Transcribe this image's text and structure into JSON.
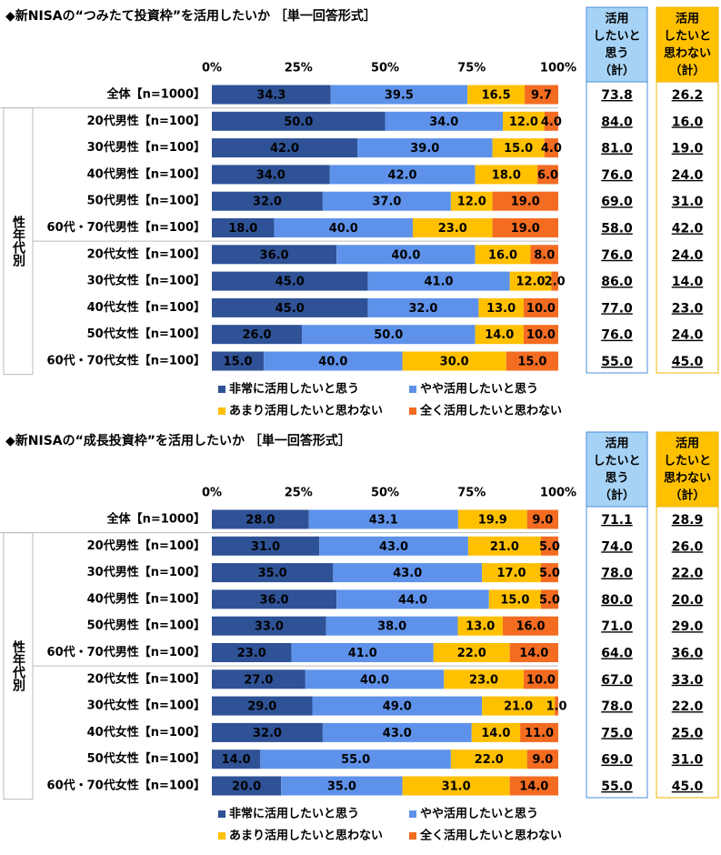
{
  "chart_data": [
    {
      "type": "bar",
      "orientation": "horizontal",
      "stacked": true,
      "title": "◆新NISAの“つみたて投資枠”を活用したいか ［単一回答形式］",
      "group_label": "性年代別",
      "categories": [
        "全体【n=1000】",
        "20代男性【n=100】",
        "30代男性【n=100】",
        "40代男性【n=100】",
        "50代男性【n=100】",
        "60代・70代男性【n=100】",
        "20代女性【n=100】",
        "30代女性【n=100】",
        "40代女性【n=100】",
        "50代女性【n=100】",
        "60代・70代女性【n=100】"
      ],
      "xlim": [
        0,
        100
      ],
      "xticks": [
        {
          "value": 0,
          "label": "0%"
        },
        {
          "value": 25,
          "label": "25%"
        },
        {
          "value": 50,
          "label": "50%"
        },
        {
          "value": 75,
          "label": "75%"
        },
        {
          "value": 100,
          "label": "100%"
        }
      ],
      "series": [
        {
          "name": "非常に活用したいと思う",
          "color": "#2f5296",
          "values": [
            34.3,
            50,
            42,
            34,
            32,
            18,
            36,
            45,
            45,
            26,
            15
          ],
          "value_labels": [
            "34.3",
            "50.0",
            "42.0",
            "34.0",
            "32.0",
            "18.0",
            "36.0",
            "45.0",
            "45.0",
            "26.0",
            "15.0"
          ]
        },
        {
          "name": "やや活用したいと思う",
          "color": "#5e92ea",
          "values": [
            39.5,
            34,
            39,
            42,
            37,
            40,
            40,
            41,
            32,
            50,
            40
          ],
          "value_labels": [
            "39.5",
            "34.0",
            "39.0",
            "42.0",
            "37.0",
            "40.0",
            "40.0",
            "41.0",
            "32.0",
            "50.0",
            "40.0"
          ]
        },
        {
          "name": "あまり活用したいと思わない",
          "color": "#ffc000",
          "values": [
            16.5,
            12,
            15,
            18,
            12,
            23,
            16,
            12,
            13,
            14,
            30
          ],
          "value_labels": [
            "16.5",
            "12.0",
            "15.0",
            "18.0",
            "12.0",
            "23.0",
            "16.0",
            "12.0",
            "13.0",
            "14.0",
            "30.0"
          ]
        },
        {
          "name": "全く活用したいと思わない",
          "color": "#f36c21",
          "values": [
            9.7,
            4,
            4,
            6,
            19,
            19,
            8,
            2,
            10,
            10,
            15
          ],
          "value_labels": [
            "9.7",
            "4.0",
            "4.0",
            "6.0",
            "19.0",
            "19.0",
            "8.0",
            "2.0",
            "10.0",
            "10.0",
            "15.0"
          ]
        }
      ],
      "summary_columns": [
        {
          "header": [
            "活用",
            "したいと",
            "思う",
            "（計）"
          ],
          "values": [
            "73.8",
            "84.0",
            "81.0",
            "76.0",
            "69.0",
            "58.0",
            "76.0",
            "86.0",
            "77.0",
            "76.0",
            "55.0"
          ]
        },
        {
          "header": [
            "活用",
            "したいと",
            "思わない",
            "（計）"
          ],
          "values": [
            "26.2",
            "16.0",
            "19.0",
            "24.0",
            "31.0",
            "42.0",
            "24.0",
            "14.0",
            "23.0",
            "24.0",
            "45.0"
          ]
        }
      ]
    },
    {
      "type": "bar",
      "orientation": "horizontal",
      "stacked": true,
      "title": "◆新NISAの“成長投資枠”を活用したいか ［単一回答形式］",
      "group_label": "性年代別",
      "categories": [
        "全体【n=1000】",
        "20代男性【n=100】",
        "30代男性【n=100】",
        "40代男性【n=100】",
        "50代男性【n=100】",
        "60代・70代男性【n=100】",
        "20代女性【n=100】",
        "30代女性【n=100】",
        "40代女性【n=100】",
        "50代女性【n=100】",
        "60代・70代女性【n=100】"
      ],
      "xlim": [
        0,
        100
      ],
      "xticks": [
        {
          "value": 0,
          "label": "0%"
        },
        {
          "value": 25,
          "label": "25%"
        },
        {
          "value": 50,
          "label": "50%"
        },
        {
          "value": 75,
          "label": "75%"
        },
        {
          "value": 100,
          "label": "100%"
        }
      ],
      "series": [
        {
          "name": "非常に活用したいと思う",
          "color": "#2f5296",
          "values": [
            28,
            31,
            35,
            36,
            33,
            23,
            27,
            29,
            32,
            14,
            20
          ],
          "value_labels": [
            "28.0",
            "31.0",
            "35.0",
            "36.0",
            "33.0",
            "23.0",
            "27.0",
            "29.0",
            "32.0",
            "14.0",
            "20.0"
          ]
        },
        {
          "name": "やや活用したいと思う",
          "color": "#5e92ea",
          "values": [
            43.1,
            43,
            43,
            44,
            38,
            41,
            40,
            49,
            43,
            55,
            35
          ],
          "value_labels": [
            "43.1",
            "43.0",
            "43.0",
            "44.0",
            "38.0",
            "41.0",
            "40.0",
            "49.0",
            "43.0",
            "55.0",
            "35.0"
          ]
        },
        {
          "name": "あまり活用したいと思わない",
          "color": "#ffc000",
          "values": [
            19.9,
            21,
            17,
            15,
            13,
            22,
            23,
            21,
            14,
            22,
            31
          ],
          "value_labels": [
            "19.9",
            "21.0",
            "17.0",
            "15.0",
            "13.0",
            "22.0",
            "23.0",
            "21.0",
            "14.0",
            "22.0",
            "31.0"
          ]
        },
        {
          "name": "全く活用したいと思わない",
          "color": "#f36c21",
          "values": [
            9,
            5,
            5,
            5,
            16,
            14,
            10,
            1,
            11,
            9,
            14
          ],
          "value_labels": [
            "9.0",
            "5.0",
            "5.0",
            "5.0",
            "16.0",
            "14.0",
            "10.0",
            "1.0",
            "11.0",
            "9.0",
            "14.0"
          ]
        }
      ],
      "summary_columns": [
        {
          "header": [
            "活用",
            "したいと",
            "思う",
            "（計）"
          ],
          "values": [
            "71.1",
            "74.0",
            "78.0",
            "80.0",
            "71.0",
            "64.0",
            "67.0",
            "78.0",
            "75.0",
            "69.0",
            "55.0"
          ]
        },
        {
          "header": [
            "活用",
            "したいと",
            "思わない",
            "（計）"
          ],
          "values": [
            "28.9",
            "26.0",
            "22.0",
            "20.0",
            "29.0",
            "36.0",
            "33.0",
            "22.0",
            "25.0",
            "31.0",
            "45.0"
          ]
        }
      ]
    }
  ]
}
